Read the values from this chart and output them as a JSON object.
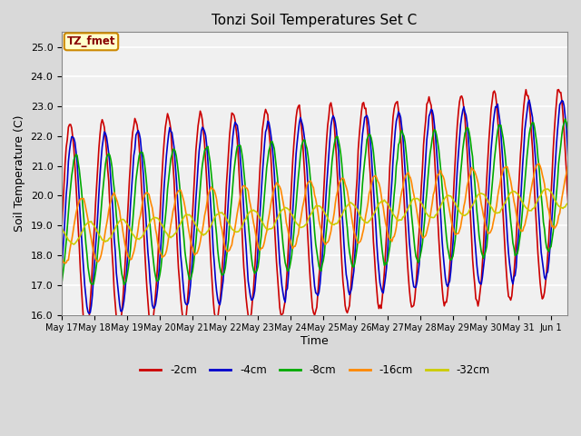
{
  "title": "Tonzi Soil Temperatures Set C",
  "xlabel": "Time",
  "ylabel": "Soil Temperature (C)",
  "ylim": [
    16.0,
    25.5
  ],
  "background_color": "#d9d9d9",
  "plot_bg_color": "#f0f0f0",
  "grid_color": "white",
  "annotation_text": "TZ_fmet",
  "annotation_bg": "#ffffcc",
  "annotation_border": "#cc8800",
  "series": [
    {
      "label": "-2cm",
      "color": "#cc0000",
      "linewidth": 1.2
    },
    {
      "label": "-4cm",
      "color": "#0000cc",
      "linewidth": 1.2
    },
    {
      "label": "-8cm",
      "color": "#00aa00",
      "linewidth": 1.2
    },
    {
      "label": "-16cm",
      "color": "#ff8800",
      "linewidth": 1.2
    },
    {
      "label": "-32cm",
      "color": "#cccc00",
      "linewidth": 1.2
    }
  ],
  "xtick_labels": [
    "May 17",
    "May 18",
    "May 19",
    "May 20",
    "May 21",
    "May 22",
    "May 23",
    "May 24",
    "May 25",
    "May 26",
    "May 27",
    "May 28",
    "May 29",
    "May 30",
    "May 31",
    "Jun 1"
  ],
  "n_points": 480
}
